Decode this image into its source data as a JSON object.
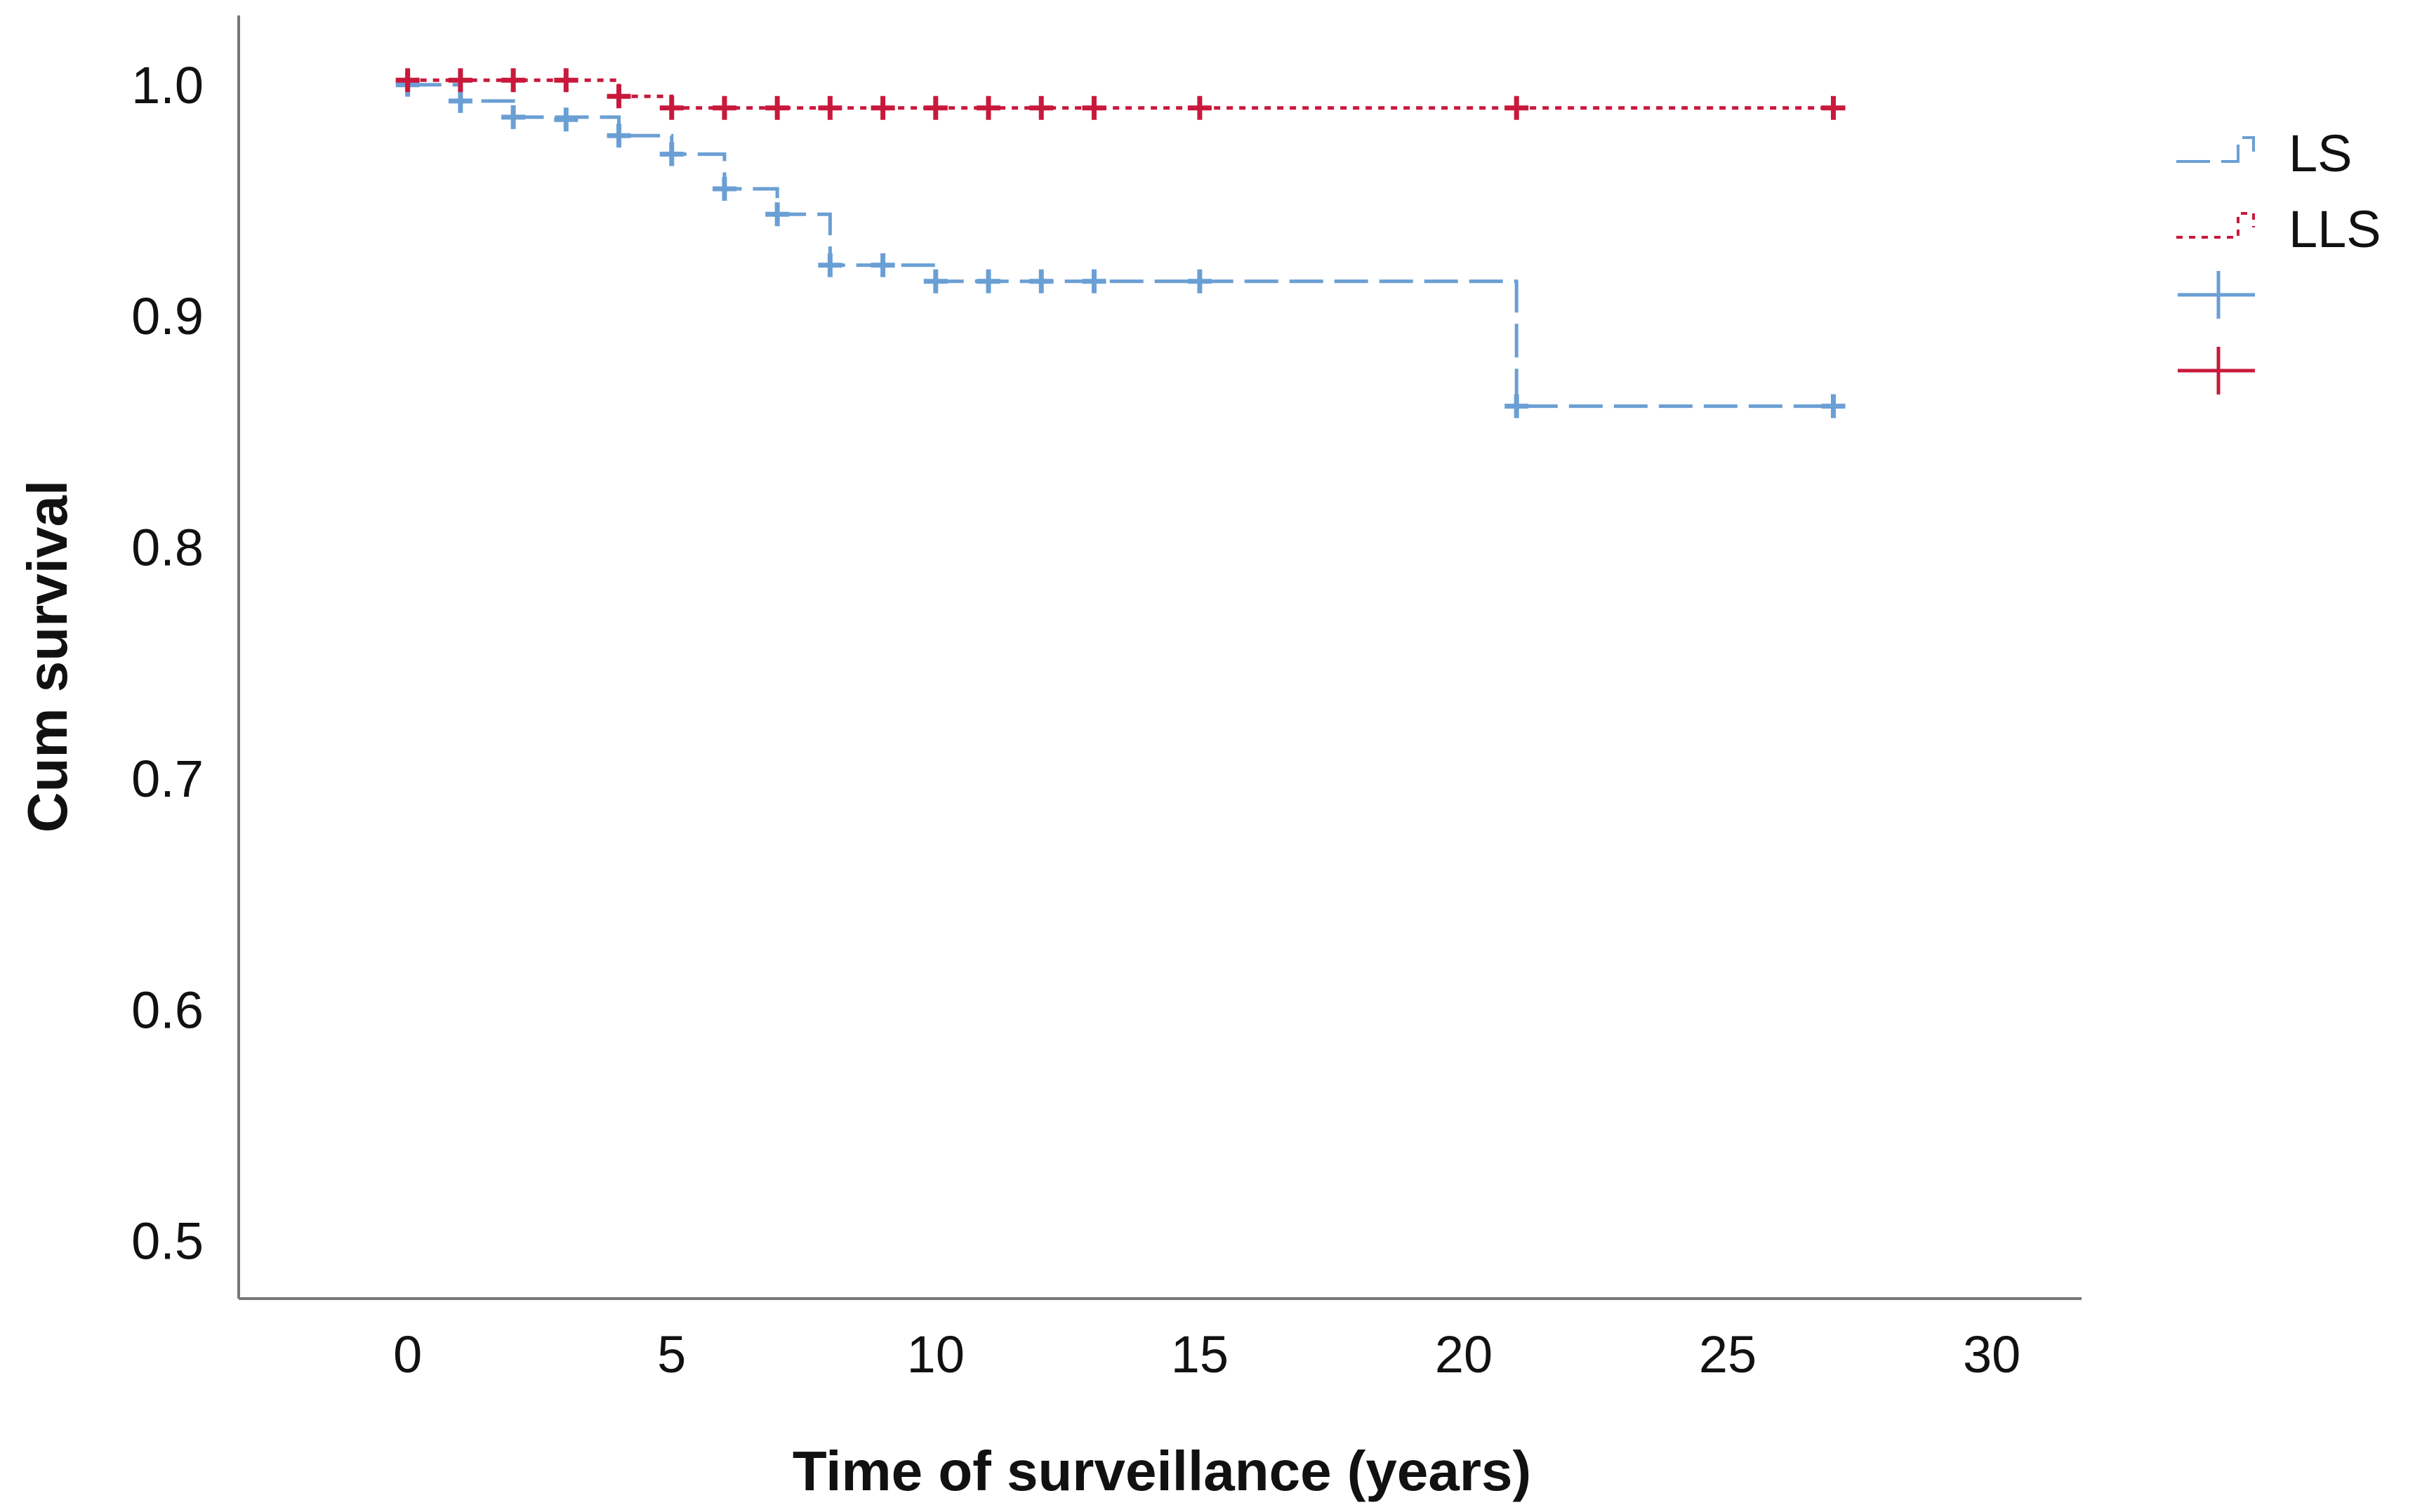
{
  "chart_data": {
    "type": "line",
    "subtype": "kaplan-meier",
    "title": "",
    "xlabel": "Time of surveillance (years)",
    "ylabel": "Cum survival",
    "xlim": [
      -3.2,
      31.7
    ],
    "ylim": [
      0.475,
      1.03
    ],
    "xticks": [
      0,
      5,
      10,
      15,
      20,
      25,
      30
    ],
    "xtick_labels": [
      "0",
      "5",
      "10",
      "15",
      "20",
      "25",
      "30"
    ],
    "yticks": [
      0.5,
      0.6,
      0.7,
      0.8,
      0.9,
      1.0
    ],
    "ytick_labels": [
      "0.5",
      "0.6",
      "0.7",
      "0.8",
      "0.9",
      "1.0"
    ],
    "grid": false,
    "legend_position": "top-right",
    "series": [
      {
        "name": "LS",
        "color": "#6a9fd4",
        "line_style": "dashed",
        "steps": [
          [
            0,
            1.0
          ],
          [
            1,
            0.993
          ],
          [
            2,
            0.986
          ],
          [
            4,
            0.978
          ],
          [
            5,
            0.97
          ],
          [
            6,
            0.955
          ],
          [
            7,
            0.944
          ],
          [
            8,
            0.922
          ],
          [
            10,
            0.915
          ],
          [
            21,
            0.861
          ],
          [
            27,
            0.861
          ]
        ],
        "censored": [
          [
            0,
            1.0
          ],
          [
            1,
            0.993
          ],
          [
            2,
            0.986
          ],
          [
            3,
            0.985
          ],
          [
            4,
            0.978
          ],
          [
            5,
            0.97
          ],
          [
            6,
            0.955
          ],
          [
            7,
            0.944
          ],
          [
            8,
            0.922
          ],
          [
            9,
            0.922
          ],
          [
            10,
            0.915
          ],
          [
            11,
            0.915
          ],
          [
            12,
            0.915
          ],
          [
            13,
            0.915
          ],
          [
            15,
            0.915
          ],
          [
            21,
            0.861
          ],
          [
            27,
            0.861
          ]
        ]
      },
      {
        "name": "LLS",
        "color": "#c8193c",
        "line_style": "dotted",
        "steps": [
          [
            0,
            1.002
          ],
          [
            4,
            0.995
          ],
          [
            5,
            0.99
          ],
          [
            27,
            0.99
          ]
        ],
        "censored": [
          [
            0,
            1.002
          ],
          [
            1,
            1.002
          ],
          [
            2,
            1.002
          ],
          [
            3,
            1.002
          ],
          [
            4,
            0.995
          ],
          [
            5,
            0.99
          ],
          [
            6,
            0.99
          ],
          [
            7,
            0.99
          ],
          [
            8,
            0.99
          ],
          [
            9,
            0.99
          ],
          [
            10,
            0.99
          ],
          [
            11,
            0.99
          ],
          [
            12,
            0.99
          ],
          [
            13,
            0.99
          ],
          [
            15,
            0.99
          ],
          [
            21,
            0.99
          ],
          [
            27,
            0.99
          ]
        ]
      }
    ]
  }
}
